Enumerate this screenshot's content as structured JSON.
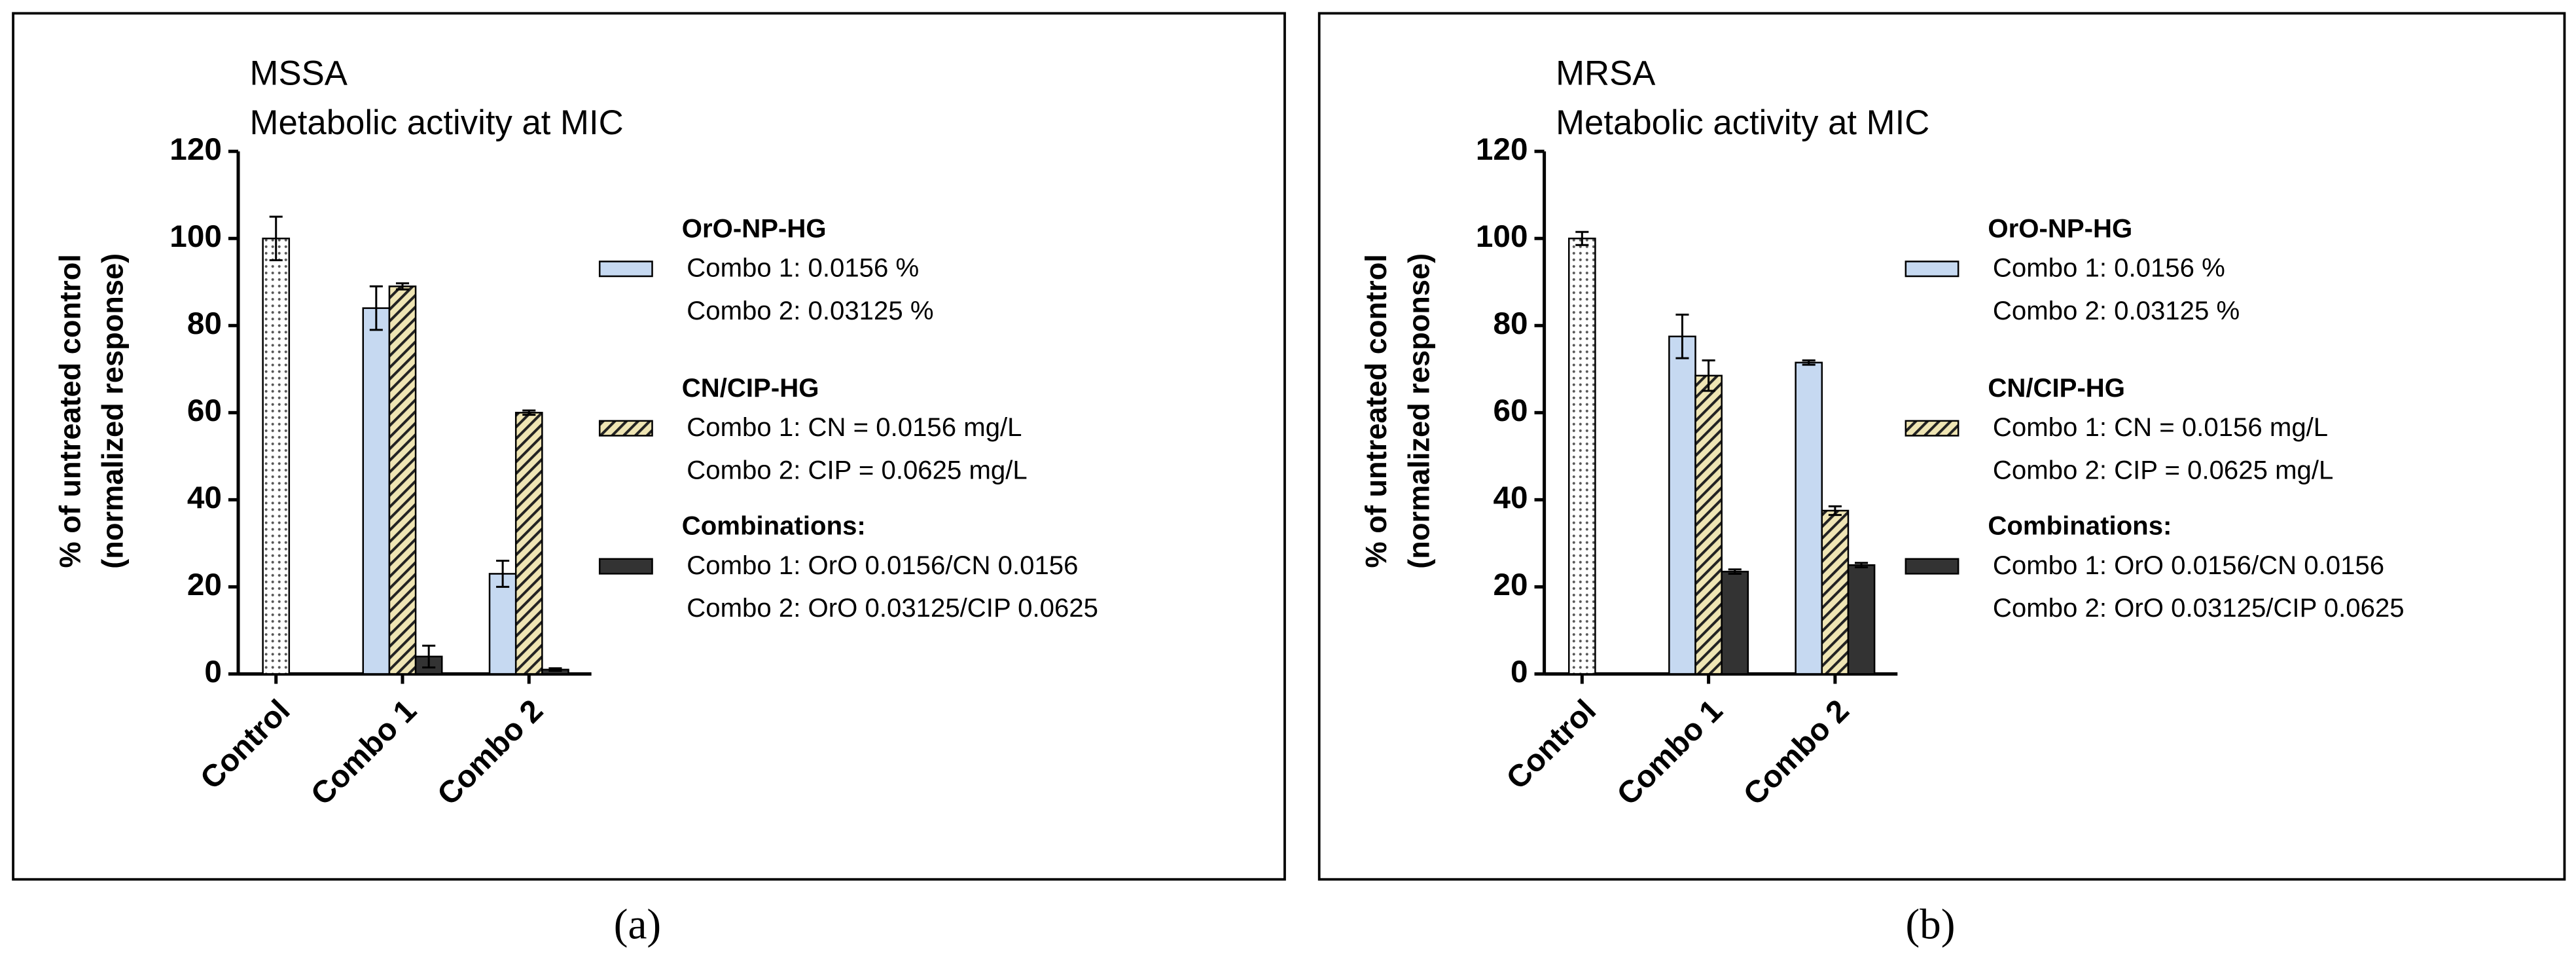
{
  "chart_data": [
    {
      "type": "bar",
      "title": [
        "MSSA",
        "Metabolic activity at MIC"
      ],
      "panel_label": "(a)",
      "ylabel": [
        "% of untreated control",
        "(normalized response)"
      ],
      "categories": [
        "Control",
        "Combo 1",
        "Combo 2"
      ],
      "ylim": [
        0,
        120
      ],
      "yticks": [
        0,
        20,
        40,
        60,
        80,
        100,
        120
      ],
      "series": [
        {
          "color": "#ffffff",
          "pattern": "dots",
          "values": [
            100,
            null,
            null
          ],
          "errors": [
            5,
            null,
            null
          ]
        },
        {
          "name": "OrO-NP-HG",
          "legend_lines": [
            "Combo 1: 0.0156 %",
            "Combo 2: 0.03125 %"
          ],
          "color": "#c6d9f1",
          "pattern": "none",
          "values": [
            null,
            84,
            23
          ],
          "errors": [
            null,
            5,
            3
          ]
        },
        {
          "name": "CN/CIP-HG",
          "legend_lines": [
            "Combo 1: CN = 0.0156 mg/L",
            "Combo 2: CIP = 0.0625 mg/L"
          ],
          "color": "#efe5b4",
          "pattern": "hatch",
          "values": [
            null,
            89,
            60
          ],
          "errors": [
            null,
            0.7,
            0.5
          ]
        },
        {
          "name": "Combinations:",
          "legend_lines": [
            "Combo 1: OrO 0.0156/CN 0.0156",
            "Combo 2: OrO 0.03125/CIP 0.0625"
          ],
          "color": "#333333",
          "pattern": "none",
          "values": [
            null,
            4,
            1
          ],
          "errors": [
            null,
            2.5,
            0.3
          ]
        }
      ]
    },
    {
      "type": "bar",
      "title": [
        "MRSA",
        "Metabolic activity at MIC"
      ],
      "panel_label": "(b)",
      "ylabel": [
        "% of untreated control",
        "(normalized response)"
      ],
      "categories": [
        "Control",
        "Combo 1",
        "Combo 2"
      ],
      "ylim": [
        0,
        120
      ],
      "yticks": [
        0,
        20,
        40,
        60,
        80,
        100,
        120
      ],
      "series": [
        {
          "color": "#ffffff",
          "pattern": "dots",
          "values": [
            100,
            null,
            null
          ],
          "errors": [
            1.5,
            null,
            null
          ]
        },
        {
          "name": "OrO-NP-HG",
          "legend_lines": [
            "Combo 1: 0.0156 %",
            "Combo 2: 0.03125 %"
          ],
          "color": "#c6d9f1",
          "pattern": "none",
          "values": [
            null,
            77.5,
            71.5
          ],
          "errors": [
            null,
            5,
            0.5
          ]
        },
        {
          "name": "CN/CIP-HG",
          "legend_lines": [
            "Combo 1: CN = 0.0156 mg/L",
            "Combo 2: CIP = 0.0625 mg/L"
          ],
          "color": "#efe5b4",
          "pattern": "hatch",
          "values": [
            null,
            68.5,
            37.5
          ],
          "errors": [
            null,
            3.5,
            1
          ]
        },
        {
          "name": "Combinations:",
          "legend_lines": [
            "Combo 1: OrO 0.0156/CN 0.0156",
            "Combo 2: OrO 0.03125/CIP 0.0625"
          ],
          "color": "#333333",
          "pattern": "none",
          "values": [
            null,
            23.5,
            25
          ],
          "errors": [
            null,
            0.5,
            0.5
          ]
        }
      ]
    }
  ]
}
